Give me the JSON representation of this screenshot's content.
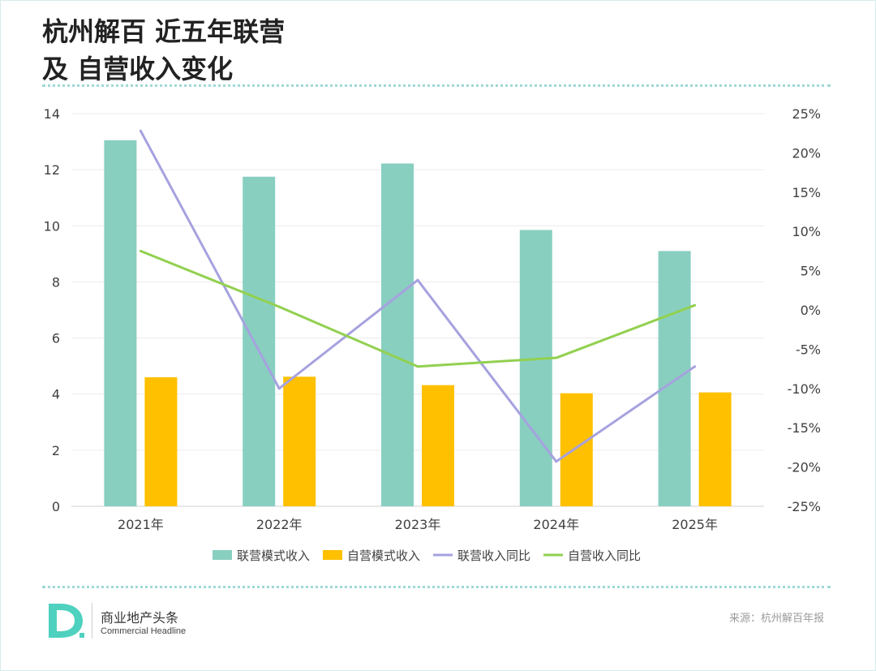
{
  "title": {
    "line1": "杭州解百 近五年联营",
    "line2": "及 自营收入变化"
  },
  "colors": {
    "bar_joint": "#88cfc0",
    "bar_self": "#ffc000",
    "line_joint": "#a6a2df",
    "line_self": "#92d050",
    "divider": "#9fd9d6"
  },
  "chart_data": {
    "type": "bar",
    "categories": [
      "2021年",
      "2022年",
      "2023年",
      "2024年",
      "2025年"
    ],
    "series": [
      {
        "name": "联营模式收入",
        "type": "bar",
        "axis": "left",
        "values": [
          13.05,
          11.75,
          12.22,
          9.85,
          9.1
        ]
      },
      {
        "name": "自营模式收入",
        "type": "bar",
        "axis": "left",
        "values": [
          4.6,
          4.62,
          4.32,
          4.03,
          4.06
        ]
      },
      {
        "name": "联营收入同比",
        "type": "line",
        "axis": "right",
        "values": [
          22.8,
          -10.0,
          3.8,
          -19.3,
          -7.2
        ]
      },
      {
        "name": "自营收入同比",
        "type": "line",
        "axis": "right",
        "values": [
          7.5,
          0.4,
          -7.2,
          -6.1,
          0.6
        ]
      }
    ],
    "ylim": [
      0,
      14
    ],
    "yticks": [
      "0",
      "2",
      "4",
      "6",
      "8",
      "10",
      "12",
      "14"
    ],
    "y2lim": [
      -25,
      25
    ],
    "y2ticks": [
      "-25%",
      "-20%",
      "-15%",
      "-10%",
      "-5%",
      "0%",
      "5%",
      "10%",
      "15%",
      "20%",
      "25%"
    ],
    "grid": true,
    "legend": "bottom"
  },
  "footer": {
    "brand_cn": "商业地产头条",
    "brand_en": "Commercial Headline",
    "source": "来源：杭州解百年报"
  }
}
